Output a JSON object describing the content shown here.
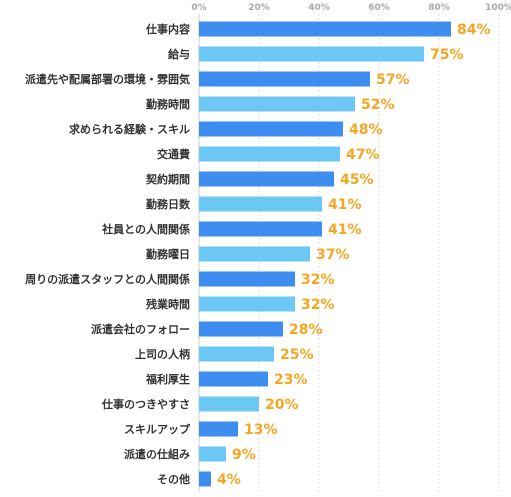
{
  "chart_data": {
    "type": "bar",
    "orientation": "horizontal",
    "categories": [
      "仕事内容",
      "給与",
      "派遣先や配属部署の環境・雰囲気",
      "勤務時間",
      "求められる経験・スキル",
      "交通費",
      "契約期間",
      "勤務日数",
      "社員との人間関係",
      "勤務曜日",
      "周りの派遣スタッフとの人間関係",
      "残業時間",
      "派遣会社のフォロー",
      "上司の人柄",
      "福利厚生",
      "仕事のつきやすさ",
      "スキルアップ",
      "派遣の仕組み",
      "その他"
    ],
    "values": [
      84,
      75,
      57,
      52,
      48,
      47,
      45,
      41,
      41,
      37,
      32,
      32,
      28,
      25,
      23,
      20,
      13,
      9,
      4
    ],
    "value_labels": [
      "84%",
      "75%",
      "57%",
      "52%",
      "48%",
      "47%",
      "45%",
      "41%",
      "41%",
      "37%",
      "32%",
      "32%",
      "28%",
      "25%",
      "23%",
      "20%",
      "13%",
      "9%",
      "4%"
    ],
    "xlim": [
      0,
      100
    ],
    "x_ticks": [
      "0%",
      "20%",
      "40%",
      "60%",
      "80%",
      "100%"
    ],
    "grid": true,
    "colors": {
      "bar_primary": "#3d8ef0",
      "bar_secondary": "#6cc7f5",
      "value_label": "#f5a623",
      "category_label": "#333333",
      "tick_label": "#aaaaaa"
    }
  }
}
